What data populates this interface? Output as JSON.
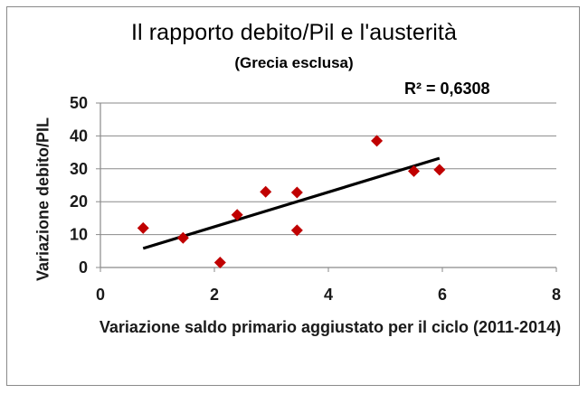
{
  "chart_data": {
    "type": "scatter",
    "title": "Il rapporto debito/Pil e l'austerità",
    "subtitle": "(Grecia esclusa)",
    "xlabel": "Variazione saldo primario aggiustato per il ciclo (2011-2014)",
    "ylabel": "Variazione debito/PIL",
    "annotation": "R² = 0,6308",
    "xlim": [
      0,
      8
    ],
    "ylim": [
      0,
      50
    ],
    "xticks": [
      "0",
      "2",
      "4",
      "6",
      "8"
    ],
    "yticks": [
      "0",
      "10",
      "20",
      "30",
      "40",
      "50"
    ],
    "grid": true,
    "points": [
      {
        "x": 0.75,
        "y": 12.0
      },
      {
        "x": 1.45,
        "y": 9.0
      },
      {
        "x": 2.1,
        "y": 1.5
      },
      {
        "x": 2.4,
        "y": 16.0
      },
      {
        "x": 2.9,
        "y": 23.0
      },
      {
        "x": 3.45,
        "y": 22.8
      },
      {
        "x": 3.45,
        "y": 11.3
      },
      {
        "x": 4.85,
        "y": 38.5
      },
      {
        "x": 5.5,
        "y": 29.3
      },
      {
        "x": 5.95,
        "y": 29.7
      }
    ],
    "trendline": {
      "x": [
        0.75,
        5.95
      ],
      "y": [
        5.8,
        33.2
      ]
    },
    "marker_color": "#c00000",
    "trendline_color": "#000000",
    "grid_color": "#8a8a8a"
  }
}
